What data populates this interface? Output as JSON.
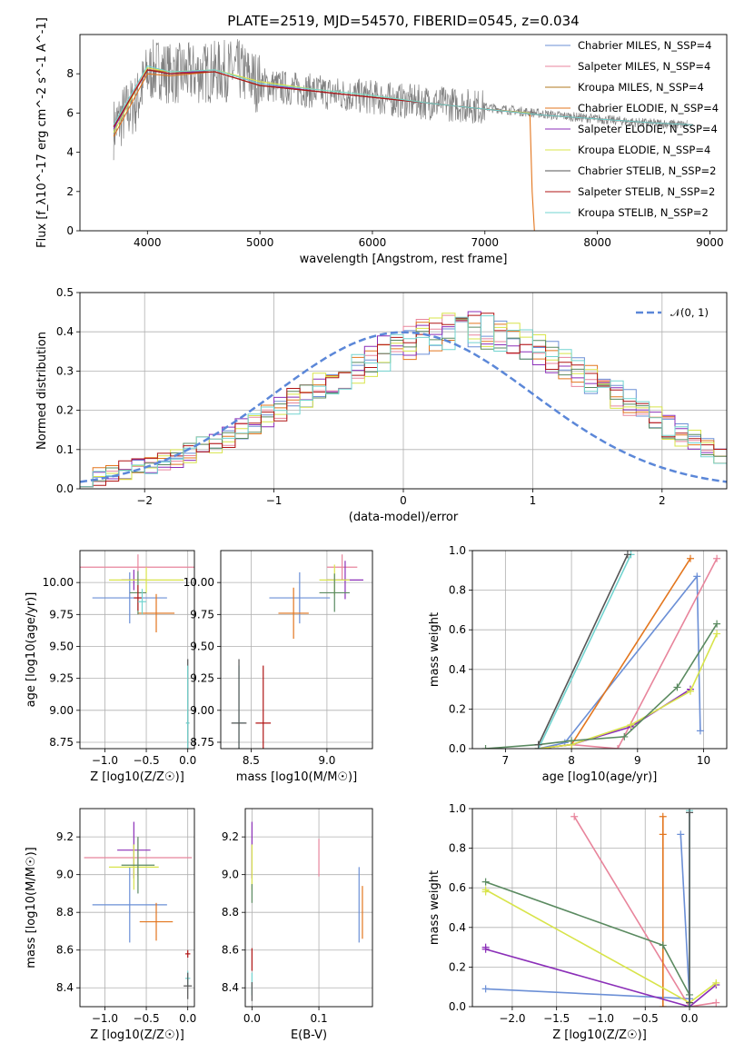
{
  "figure_title": "PLATE=2519, MJD=54570, FIBERID=0545, z=0.034",
  "colors": {
    "Chabrier MILES": "#6b8fd6",
    "Salpeter MILES": "#e8859c",
    "Kroupa MILES": "#b07a1f",
    "Chabrier ELODIE": "#e3761e",
    "Salpeter ELODIE": "#8b2fb8",
    "Kroupa ELODIE": "#d8e44a",
    "Chabrier STELIB": "#555555",
    "Salpeter STELIB": "#b01515",
    "Kroupa STELIB": "#72d4d0",
    "Chabrier STELIB (weights)": "#5a8a60",
    "data": "#808080",
    "gaussian": "#5b87d8"
  },
  "chart_data": [
    {
      "id": "spectrum",
      "type": "line",
      "xlabel": "wavelength [Angstrom, rest frame]",
      "ylabel": "Flux [f_λ10^-17 erg cm^-2 s^-1 A^-1]",
      "xlim": [
        3400,
        9150
      ],
      "ylim": [
        0,
        10
      ],
      "xticks": [
        4000,
        5000,
        6000,
        7000,
        8000,
        9000
      ],
      "yticks": [
        0,
        2,
        4,
        6,
        8
      ],
      "grid": false,
      "legend_position": "top-right",
      "data_flux_envelope": {
        "x": [
          3700,
          3800,
          3900,
          4000,
          4100,
          4200,
          4400,
          4600,
          4800,
          5000,
          5200,
          5500,
          5800,
          6000,
          6300,
          6600,
          7000,
          7300,
          7600,
          8000,
          8400,
          8800
        ],
        "y": [
          5.2,
          6.0,
          6.5,
          8.0,
          8.3,
          8.0,
          8.0,
          8.1,
          8.2,
          7.5,
          7.3,
          7.1,
          6.9,
          6.8,
          6.6,
          6.5,
          6.3,
          6.1,
          5.9,
          5.7,
          5.5,
          5.4
        ]
      },
      "series": [
        {
          "name": "Chabrier MILES, N_SSP=4",
          "x": [
            3700,
            4000,
            4200,
            4600,
            5000,
            5500,
            6000,
            6500,
            7000,
            7400
          ],
          "y": [
            5.4,
            8.2,
            8.0,
            8.1,
            7.4,
            7.1,
            6.8,
            6.5,
            6.2,
            6.0
          ]
        },
        {
          "name": "Salpeter MILES, N_SSP=4",
          "x": [
            3700,
            4000,
            4200,
            4600,
            5000,
            5500,
            6000,
            6500,
            7000,
            7400
          ],
          "y": [
            5.4,
            8.3,
            8.0,
            8.1,
            7.4,
            7.1,
            6.8,
            6.5,
            6.2,
            6.0
          ]
        },
        {
          "name": "Kroupa MILES, N_SSP=4",
          "x": [
            3700,
            4000,
            4200,
            4600,
            5000,
            5500,
            6000,
            6500,
            7000,
            7400
          ],
          "y": [
            5.3,
            8.2,
            8.1,
            8.1,
            7.4,
            7.1,
            6.8,
            6.5,
            6.2,
            6.0
          ]
        },
        {
          "name": "Chabrier ELODIE, N_SSP=4",
          "x": [
            3700,
            4000,
            4200,
            4600,
            5000,
            5500,
            6000,
            6500,
            7000,
            7400,
            7420,
            7440
          ],
          "y": [
            4.8,
            8.0,
            7.9,
            8.1,
            7.4,
            7.1,
            6.8,
            6.5,
            6.2,
            6.0,
            2.0,
            0
          ]
        },
        {
          "name": "Salpeter ELODIE, N_SSP=4",
          "x": [
            3700,
            4000,
            4200,
            4600,
            5000,
            5500,
            6000,
            6500,
            7000,
            7400
          ],
          "y": [
            5.2,
            8.2,
            8.0,
            8.2,
            7.5,
            7.1,
            6.8,
            6.5,
            6.2,
            6.0
          ]
        },
        {
          "name": "Kroupa ELODIE, N_SSP=4",
          "x": [
            3700,
            4000,
            4200,
            4600,
            5000,
            5500,
            6000,
            6500,
            7000,
            7400
          ],
          "y": [
            5.0,
            8.3,
            8.1,
            8.2,
            7.6,
            7.2,
            6.9,
            6.5,
            6.2,
            6.0
          ]
        },
        {
          "name": "Chabrier STELIB, N_SSP=2",
          "x": [
            3700,
            4000,
            4200,
            4600,
            5000,
            5500,
            6000,
            6500,
            7000,
            7500,
            8000,
            8500,
            8850
          ],
          "y": [
            5.3,
            8.2,
            8.0,
            8.1,
            7.4,
            7.1,
            6.8,
            6.5,
            6.2,
            5.9,
            5.7,
            5.5,
            5.4
          ]
        },
        {
          "name": "Salpeter STELIB, N_SSP=2",
          "x": [
            3700,
            4000,
            4200,
            4600,
            5000,
            5500,
            6000,
            6500,
            7000,
            7500,
            8000,
            8500,
            8850
          ],
          "y": [
            5.3,
            8.2,
            8.0,
            8.1,
            7.4,
            7.1,
            6.8,
            6.5,
            6.2,
            5.9,
            5.7,
            5.5,
            5.4
          ]
        },
        {
          "name": "Kroupa STELIB, N_SSP=2",
          "x": [
            3700,
            4000,
            4200,
            4600,
            5000,
            5500,
            6000,
            6500,
            7000,
            7500,
            8000,
            8500,
            8850
          ],
          "y": [
            5.4,
            8.4,
            8.1,
            8.2,
            7.5,
            7.2,
            6.9,
            6.5,
            6.2,
            5.9,
            5.7,
            5.5,
            5.4
          ]
        }
      ]
    },
    {
      "id": "residuals",
      "type": "line",
      "xlabel": "(data-model)/error",
      "ylabel": "Normed distribution",
      "xlim": [
        -2.5,
        2.5
      ],
      "ylim": [
        0,
        0.5
      ],
      "xticks": [
        -2,
        -1,
        0,
        1,
        2
      ],
      "yticks": [
        0,
        0.1,
        0.2,
        0.3,
        0.4,
        0.5
      ],
      "grid": true,
      "legend_position": "top-right",
      "gaussian_label": "𝒩(0, 1)",
      "bin_width": 0.1,
      "hist_base": [
        0.028,
        0.032,
        0.04,
        0.048,
        0.055,
        0.06,
        0.07,
        0.08,
        0.092,
        0.107,
        0.12,
        0.135,
        0.15,
        0.167,
        0.182,
        0.2,
        0.22,
        0.24,
        0.257,
        0.272,
        0.29,
        0.31,
        0.33,
        0.345,
        0.36,
        0.375,
        0.39,
        0.395,
        0.4,
        0.405,
        0.41,
        0.4,
        0.39,
        0.38,
        0.368,
        0.35,
        0.335,
        0.318,
        0.3,
        0.282,
        0.262,
        0.24,
        0.22,
        0.2,
        0.178,
        0.158,
        0.138,
        0.12,
        0.1,
        0.085,
        0.07
      ],
      "hist_bins_from": -2.5
    },
    {
      "id": "age_vs_Z",
      "type": "scatter",
      "xlabel": "Z [log10(Z/Z☉)]",
      "ylabel": "age [log10(age/yr)]",
      "xlim": [
        -1.3,
        0.08
      ],
      "ylim": [
        8.7,
        10.25
      ],
      "xticks": [
        -1.0,
        -0.5,
        0.0
      ],
      "yticks": [
        8.75,
        9.0,
        9.25,
        9.5,
        9.75,
        10.0
      ],
      "grid": true,
      "points": [
        {
          "series": "Chabrier MILES",
          "x": -0.7,
          "y": 9.88,
          "xerr": 0.45,
          "yerr": 0.2
        },
        {
          "series": "Salpeter MILES",
          "x": -0.6,
          "y": 10.12,
          "xerr": 0.7,
          "yerr": 0.1
        },
        {
          "series": "Chabrier ELODIE",
          "x": -0.38,
          "y": 9.76,
          "xerr": 0.22,
          "yerr": 0.15
        },
        {
          "series": "Salpeter ELODIE",
          "x": -0.65,
          "y": 10.02,
          "xerr": 0.15,
          "yerr": 0.08
        },
        {
          "series": "Kroupa ELODIE",
          "x": -0.5,
          "y": 10.02,
          "xerr": 0.45,
          "yerr": 0.1
        },
        {
          "series": "Chabrier STELIB (weights)",
          "x": -0.6,
          "y": 9.92,
          "xerr": 0.1,
          "yerr": 0.17
        },
        {
          "series": "Salpeter STELIB",
          "x": -0.6,
          "y": 9.88,
          "xerr": 0.05,
          "yerr": 0.1
        },
        {
          "series": "Kroupa STELIB",
          "x": -0.55,
          "y": 9.85,
          "xerr": 0.05,
          "yerr": 0.1
        },
        {
          "series": "Chabrier STELIB",
          "x": 0.0,
          "y": 8.9,
          "xerr": 0.02,
          "yerr": 0.5
        },
        {
          "series": "Kroupa STELIB",
          "x": 0.0,
          "y": 8.9,
          "xerr": 0.02,
          "yerr": 0.45
        }
      ]
    },
    {
      "id": "age_vs_mass",
      "type": "scatter",
      "xlabel": "mass [log10(M/M☉)]",
      "ylabel": "",
      "xlim": [
        8.3,
        9.3
      ],
      "ylim": [
        8.7,
        10.25
      ],
      "xticks": [
        8.5,
        9.0
      ],
      "yticks": [
        8.75,
        9.0,
        9.25,
        9.5,
        9.75,
        10.0
      ],
      "grid": true,
      "points": [
        {
          "series": "Chabrier MILES",
          "x": 8.82,
          "y": 9.88,
          "xerr": 0.2,
          "yerr": 0.2
        },
        {
          "series": "Salpeter MILES",
          "x": 9.1,
          "y": 10.12,
          "xerr": 0.1,
          "yerr": 0.1
        },
        {
          "series": "Chabrier ELODIE",
          "x": 8.78,
          "y": 9.76,
          "xerr": 0.1,
          "yerr": 0.2
        },
        {
          "series": "Salpeter ELODIE",
          "x": 9.12,
          "y": 10.02,
          "xerr": 0.12,
          "yerr": 0.15
        },
        {
          "series": "Kroupa ELODIE",
          "x": 9.05,
          "y": 10.02,
          "xerr": 0.1,
          "yerr": 0.12
        },
        {
          "series": "Chabrier STELIB (weights)",
          "x": 9.05,
          "y": 9.92,
          "xerr": 0.1,
          "yerr": 0.15
        },
        {
          "series": "Salpeter STELIB",
          "x": 8.58,
          "y": 8.9,
          "xerr": 0.05,
          "yerr": 0.45
        },
        {
          "series": "Kroupa STELIB",
          "x": 8.42,
          "y": 8.9,
          "xerr": 0.04,
          "yerr": 0.45
        },
        {
          "series": "Chabrier STELIB",
          "x": 8.42,
          "y": 8.9,
          "xerr": 0.05,
          "yerr": 0.5
        }
      ]
    },
    {
      "id": "weight_vs_age",
      "type": "line",
      "xlabel": "age [log10(age/yr)]",
      "ylabel": "mass weight",
      "xlim": [
        6.5,
        10.35
      ],
      "ylim": [
        0,
        1.0
      ],
      "xticks": [
        7,
        8,
        9,
        10
      ],
      "yticks": [
        0,
        0.2,
        0.4,
        0.6,
        0.8,
        1.0
      ],
      "grid": true,
      "series": [
        {
          "name": "Chabrier MILES",
          "x": [
            7.5,
            7.9,
            9.9,
            9.95
          ],
          "y": [
            0.0,
            0.03,
            0.87,
            0.09
          ]
        },
        {
          "name": "Salpeter MILES",
          "x": [
            7.5,
            8.0,
            8.7,
            10.2
          ],
          "y": [
            0.0,
            0.02,
            0.0,
            0.96
          ]
        },
        {
          "name": "Chabrier ELODIE",
          "x": [
            7.5,
            8.0,
            9.8
          ],
          "y": [
            0.0,
            0.02,
            0.96
          ]
        },
        {
          "name": "Salpeter ELODIE",
          "x": [
            7.5,
            8.0,
            8.9,
            9.8
          ],
          "y": [
            0.0,
            0.02,
            0.11,
            0.3
          ]
        },
        {
          "name": "Kroupa ELODIE",
          "x": [
            7.5,
            8.0,
            8.9,
            9.8,
            10.2
          ],
          "y": [
            0.0,
            0.02,
            0.12,
            0.29,
            0.58
          ]
        },
        {
          "name": "Chabrier STELIB (weights)",
          "x": [
            6.7,
            7.5,
            8.0,
            8.8,
            9.6,
            10.2
          ],
          "y": [
            0.0,
            0.02,
            0.04,
            0.06,
            0.31,
            0.63
          ]
        },
        {
          "name": "Kroupa STELIB",
          "x": [
            7.5,
            8.9
          ],
          "y": [
            0.0,
            0.98
          ]
        },
        {
          "name": "Chabrier STELIB",
          "x": [
            7.5,
            8.85
          ],
          "y": [
            0.02,
            0.98
          ]
        }
      ]
    },
    {
      "id": "mass_vs_Z",
      "type": "scatter",
      "xlabel": "Z [log10(Z/Z☉)]",
      "ylabel": "mass [log10(M/M☉)]",
      "xlim": [
        -1.3,
        0.08
      ],
      "ylim": [
        8.3,
        9.35
      ],
      "xticks": [
        -1.0,
        -0.5,
        0.0
      ],
      "yticks": [
        8.4,
        8.6,
        8.8,
        9.0,
        9.2
      ],
      "grid": true,
      "points": [
        {
          "series": "Chabrier MILES",
          "x": -0.7,
          "y": 8.84,
          "xerr": 0.45,
          "yerr": 0.2
        },
        {
          "series": "Salpeter MILES",
          "x": -0.6,
          "y": 9.09,
          "xerr": 0.65,
          "yerr": 0.1
        },
        {
          "series": "Chabrier ELODIE",
          "x": -0.38,
          "y": 8.75,
          "xerr": 0.2,
          "yerr": 0.1
        },
        {
          "series": "Salpeter ELODIE",
          "x": -0.65,
          "y": 9.13,
          "xerr": 0.2,
          "yerr": 0.15
        },
        {
          "series": "Kroupa ELODIE",
          "x": -0.65,
          "y": 9.04,
          "xerr": 0.3,
          "yerr": 0.12
        },
        {
          "series": "Chabrier STELIB (weights)",
          "x": -0.6,
          "y": 9.05,
          "xerr": 0.2,
          "yerr": 0.15
        },
        {
          "series": "Salpeter STELIB",
          "x": 0.0,
          "y": 8.58,
          "xerr": 0.03,
          "yerr": 0.02
        },
        {
          "series": "Kroupa STELIB",
          "x": 0.0,
          "y": 8.45,
          "xerr": 0.03,
          "yerr": 0.04
        },
        {
          "series": "Chabrier STELIB",
          "x": 0.0,
          "y": 8.41,
          "xerr": 0.05,
          "yerr": 0.07
        }
      ]
    },
    {
      "id": "mass_vs_EBV",
      "type": "scatter",
      "xlabel": "E(B-V)",
      "ylabel": "",
      "xlim": [
        -0.01,
        0.18
      ],
      "ylim": [
        8.3,
        9.35
      ],
      "xticks": [
        0.0,
        0.1
      ],
      "yticks": [
        8.4,
        8.6,
        8.8,
        9.0,
        9.2
      ],
      "grid": true,
      "points": [
        {
          "series": "Chabrier MILES",
          "x": 0.16,
          "y": 8.84,
          "xerr": 0,
          "yerr": 0.2
        },
        {
          "series": "Salpeter MILES",
          "x": 0.1,
          "y": 9.09,
          "xerr": 0,
          "yerr": 0.1
        },
        {
          "series": "Chabrier ELODIE",
          "x": 0.165,
          "y": 8.8,
          "xerr": 0,
          "yerr": 0.14
        },
        {
          "series": "Salpeter ELODIE",
          "x": 0.0,
          "y": 9.13,
          "xerr": 0,
          "yerr": 0.15
        },
        {
          "series": "Kroupa ELODIE",
          "x": 0.0,
          "y": 9.04,
          "xerr": 0,
          "yerr": 0.12
        },
        {
          "series": "Chabrier STELIB (weights)",
          "x": 0.0,
          "y": 8.9,
          "xerr": 0,
          "yerr": 0.05
        },
        {
          "series": "Salpeter STELIB",
          "x": 0.0,
          "y": 8.55,
          "xerr": 0,
          "yerr": 0.06
        },
        {
          "series": "Kroupa STELIB",
          "x": 0.0,
          "y": 8.42,
          "xerr": 0,
          "yerr": 0.06
        },
        {
          "series": "Chabrier STELIB",
          "x": 0.0,
          "y": 8.38,
          "xerr": 0,
          "yerr": 0.05
        }
      ]
    },
    {
      "id": "weight_vs_Z",
      "type": "line",
      "xlabel": "Z [log10(Z/Z☉)]",
      "ylabel": "mass weight",
      "xlim": [
        -2.45,
        0.42
      ],
      "ylim": [
        0,
        1.0
      ],
      "xticks": [
        -2.0,
        -1.5,
        -1.0,
        -0.5,
        0.0
      ],
      "yticks": [
        0,
        0.2,
        0.4,
        0.6,
        0.8,
        1.0
      ],
      "grid": true,
      "series": [
        {
          "name": "Chabrier MILES",
          "x": [
            -2.3,
            0.0,
            -0.1
          ],
          "y": [
            0.09,
            0.04,
            0.87
          ]
        },
        {
          "name": "Salpeter MILES",
          "x": [
            -1.3,
            0.0,
            0.3
          ],
          "y": [
            0.96,
            0.0,
            0.02
          ]
        },
        {
          "name": "Chabrier ELODIE",
          "x": [
            -0.3,
            -0.3,
            -0.3
          ],
          "y": [
            0.96,
            0.87,
            0.0
          ]
        },
        {
          "name": "Salpeter ELODIE",
          "x": [
            -2.3,
            -2.3,
            0.0,
            0.3
          ],
          "y": [
            0.3,
            0.29,
            0.0,
            0.11
          ]
        },
        {
          "name": "Kroupa ELODIE",
          "x": [
            -2.3,
            -2.3,
            0.0,
            0.3
          ],
          "y": [
            0.58,
            0.59,
            0.02,
            0.12
          ]
        },
        {
          "name": "Chabrier STELIB (weights)",
          "x": [
            -2.3,
            -0.3,
            0.0,
            0.0
          ],
          "y": [
            0.63,
            0.31,
            0.06,
            0.0
          ]
        },
        {
          "name": "Kroupa STELIB",
          "x": [
            0.0,
            0.0
          ],
          "y": [
            0.0,
            0.99
          ]
        },
        {
          "name": "Chabrier STELIB",
          "x": [
            0.0,
            0.0
          ],
          "y": [
            0.02,
            0.98
          ]
        }
      ]
    }
  ]
}
